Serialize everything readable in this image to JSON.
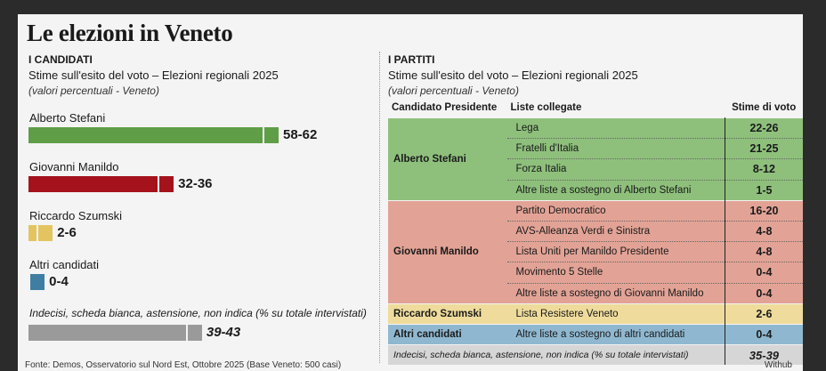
{
  "title": "Le elezioni in Veneto",
  "left": {
    "header": "I CANDIDATI",
    "subtitle": "Stime sull'esito del voto – Elezioni regionali 2025",
    "note": "(valori percentuali - Veneto)",
    "undecided_label": "Indecisi, scheda bianca, astensione, non indica (% su totale intervistati)"
  },
  "right": {
    "header": "I PARTITI",
    "subtitle": "Stime sull'esito del voto – Elezioni regionali 2025",
    "note": "(valori percentuali - Veneto)",
    "columns": [
      "Candidato Presidente",
      "Liste collegate",
      "Stime di voto"
    ]
  },
  "chart_data": [
    {
      "type": "bar",
      "orientation": "horizontal",
      "categories": [
        "Alberto Stefani",
        "Giovanni Manildo",
        "Riccardo Szumski",
        "Altri candidati",
        "Indecisi, scheda bianca, astensione, non indica (% su totale intervistati)"
      ],
      "ranges": [
        [
          58,
          62
        ],
        [
          32,
          36
        ],
        [
          2,
          6
        ],
        [
          0,
          4
        ],
        [
          39,
          43
        ]
      ],
      "labels": [
        "58-62",
        "32-36",
        "2-6",
        "0-4",
        "39-43"
      ],
      "colors": [
        "#5f9e46",
        "#a5121c",
        "#e3c460",
        "#3f7ea3",
        "#9a9a9a"
      ],
      "xlim": [
        0,
        62
      ]
    },
    {
      "type": "table",
      "groups": [
        {
          "candidate": "Alberto Stefani",
          "color": "#8ec07c",
          "lists": [
            {
              "name": "Lega",
              "value": "22-26"
            },
            {
              "name": "Fratelli d'Italia",
              "value": "21-25"
            },
            {
              "name": "Forza Italia",
              "value": "8-12"
            },
            {
              "name": "Altre liste a sostegno di Alberto Stefani",
              "value": "1-5"
            }
          ]
        },
        {
          "candidate": "Giovanni Manildo",
          "color": "#e2a396",
          "lists": [
            {
              "name": "Partito Democratico",
              "value": "16-20"
            },
            {
              "name": "AVS-Alleanza Verdi e Sinistra",
              "value": "4-8"
            },
            {
              "name": "Lista Uniti per Manildo Presidente",
              "value": "4-8"
            },
            {
              "name": "Movimento 5 Stelle",
              "value": "0-4"
            },
            {
              "name": "Altre liste a sostegno di Giovanni Manildo",
              "value": "0-4"
            }
          ]
        },
        {
          "candidate": "Riccardo Szumski",
          "color": "#efdc9c",
          "lists": [
            {
              "name": "Lista Resistere Veneto",
              "value": "2-6"
            }
          ]
        },
        {
          "candidate": "Altri candidati",
          "color": "#8fb8d0",
          "lists": [
            {
              "name": "Altre liste a sostegno di altri candidati",
              "value": "0-4"
            }
          ]
        }
      ],
      "undecided": {
        "label": "Indecisi, scheda bianca, astensione, non indica (% su totale intervistati)",
        "value": "35-39",
        "color": "#d6d6d6"
      }
    }
  ],
  "footer": {
    "source": "Fonte: Demos, Osservatorio sul Nord Est, Ottobre 2025 (Base Veneto: 500 casi)",
    "brand": "Withub"
  }
}
